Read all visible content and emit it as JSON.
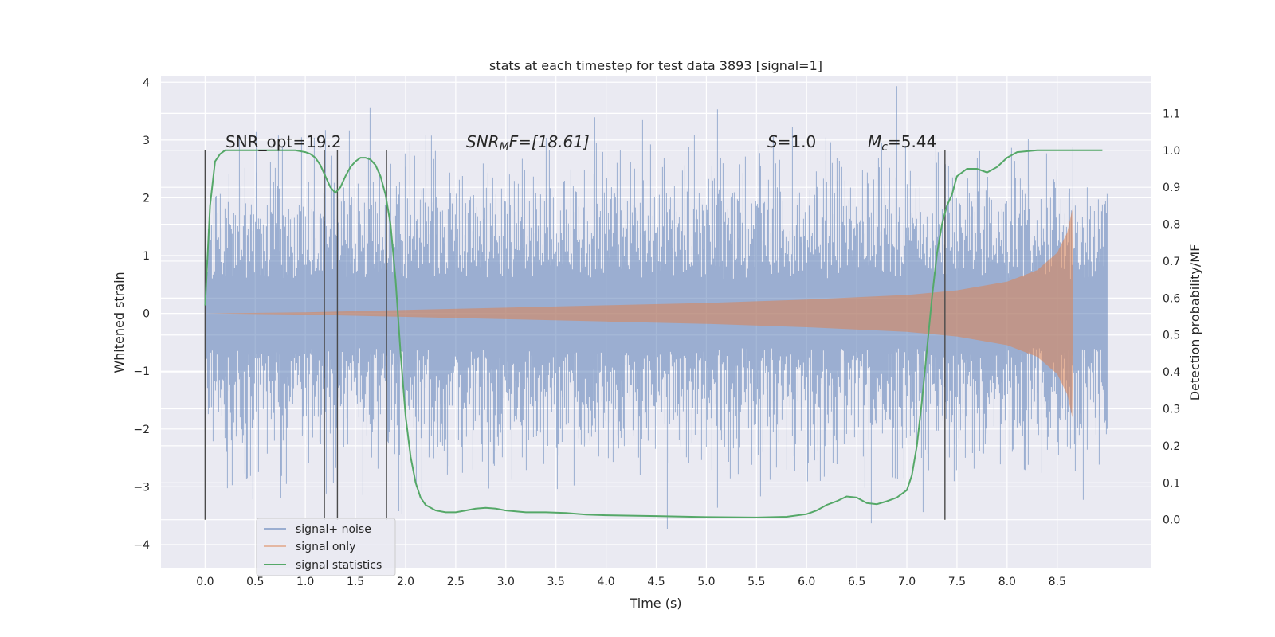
{
  "chart_data": {
    "type": "line",
    "title": "stats at each timestep for test data 3893 [signal=1]",
    "xlabel": "Time (s)",
    "ylabel": "Whitened strain",
    "y2label": "Detection probability/MF",
    "xlim": [
      -0.44,
      9.44
    ],
    "ylim": [
      -4.4,
      4.1
    ],
    "y2lim": [
      -0.13,
      1.2
    ],
    "xticks": [
      "0.0",
      "0.5",
      "1.0",
      "1.5",
      "2.0",
      "2.5",
      "3.0",
      "3.5",
      "4.0",
      "4.5",
      "5.0",
      "5.5",
      "6.0",
      "6.5",
      "7.0",
      "7.5",
      "8.0",
      "8.5"
    ],
    "yticks": [
      "−4",
      "−3",
      "−2",
      "−1",
      "0",
      "1",
      "2",
      "3",
      "4"
    ],
    "y2ticks": [
      "0.0",
      "0.1",
      "0.2",
      "0.3",
      "0.4",
      "0.5",
      "0.6",
      "0.7",
      "0.8",
      "0.9",
      "1.0",
      "1.1"
    ],
    "grid": true,
    "legend_position": "lower-left",
    "annotations": {
      "snr_opt": "SNR_opt=19.2",
      "snr_mf_label": "SNR",
      "snr_mf_sub": "M",
      "snr_mf_rest": "F=[18.61]",
      "s_label": "S",
      "s_rest": "=1.0",
      "mc_label": "M",
      "mc_sub": "c",
      "mc_rest": "=5.44"
    },
    "vlines": [
      0.0,
      1.19,
      1.32,
      1.81,
      7.38
    ],
    "series": [
      {
        "name": "signal+ noise",
        "color": "#4c72b0",
        "description_noise_sigma": 0.95,
        "x_range": [
          0.0,
          9.0
        ]
      },
      {
        "name": "signal only",
        "color": "#dd8452",
        "envelope": [
          [
            0.0,
            0.0
          ],
          [
            1.0,
            0.02
          ],
          [
            2.0,
            0.06
          ],
          [
            3.0,
            0.1
          ],
          [
            4.0,
            0.14
          ],
          [
            5.0,
            0.18
          ],
          [
            6.0,
            0.24
          ],
          [
            7.0,
            0.32
          ],
          [
            7.5,
            0.4
          ],
          [
            8.0,
            0.55
          ],
          [
            8.3,
            0.75
          ],
          [
            8.5,
            1.05
          ],
          [
            8.6,
            1.4
          ],
          [
            8.65,
            1.8
          ],
          [
            8.66,
            0.0
          ],
          [
            9.0,
            0.0
          ]
        ]
      },
      {
        "name": "signal statistics",
        "color": "#55a868",
        "axis": "right",
        "x": [
          0.0,
          0.05,
          0.1,
          0.15,
          0.2,
          0.3,
          0.4,
          0.5,
          0.6,
          0.7,
          0.8,
          0.9,
          1.0,
          1.05,
          1.1,
          1.15,
          1.2,
          1.25,
          1.3,
          1.35,
          1.4,
          1.45,
          1.5,
          1.55,
          1.6,
          1.65,
          1.7,
          1.75,
          1.8,
          1.85,
          1.9,
          1.95,
          2.0,
          2.05,
          2.1,
          2.15,
          2.2,
          2.3,
          2.4,
          2.5,
          2.6,
          2.7,
          2.8,
          2.9,
          3.0,
          3.2,
          3.4,
          3.6,
          3.8,
          4.0,
          4.5,
          5.0,
          5.5,
          5.8,
          6.0,
          6.1,
          6.2,
          6.3,
          6.4,
          6.5,
          6.6,
          6.7,
          6.8,
          6.9,
          7.0,
          7.05,
          7.1,
          7.15,
          7.2,
          7.25,
          7.3,
          7.35,
          7.4,
          7.45,
          7.5,
          7.6,
          7.7,
          7.8,
          7.9,
          8.0,
          8.1,
          8.3,
          8.5,
          8.7,
          8.9,
          8.95
        ],
        "y": [
          0.58,
          0.85,
          0.97,
          0.99,
          1.0,
          1.0,
          1.0,
          1.0,
          1.0,
          1.0,
          1.0,
          1.0,
          0.995,
          0.99,
          0.98,
          0.96,
          0.93,
          0.9,
          0.885,
          0.9,
          0.93,
          0.955,
          0.97,
          0.98,
          0.98,
          0.975,
          0.96,
          0.93,
          0.88,
          0.8,
          0.65,
          0.45,
          0.28,
          0.17,
          0.1,
          0.06,
          0.04,
          0.025,
          0.02,
          0.02,
          0.025,
          0.03,
          0.032,
          0.03,
          0.025,
          0.02,
          0.02,
          0.018,
          0.014,
          0.012,
          0.01,
          0.007,
          0.006,
          0.008,
          0.015,
          0.025,
          0.04,
          0.05,
          0.063,
          0.06,
          0.045,
          0.042,
          0.05,
          0.06,
          0.08,
          0.12,
          0.2,
          0.32,
          0.46,
          0.6,
          0.72,
          0.8,
          0.85,
          0.88,
          0.93,
          0.95,
          0.95,
          0.94,
          0.955,
          0.98,
          0.995,
          1.0,
          1.0,
          1.0,
          1.0,
          1.0
        ]
      }
    ]
  }
}
